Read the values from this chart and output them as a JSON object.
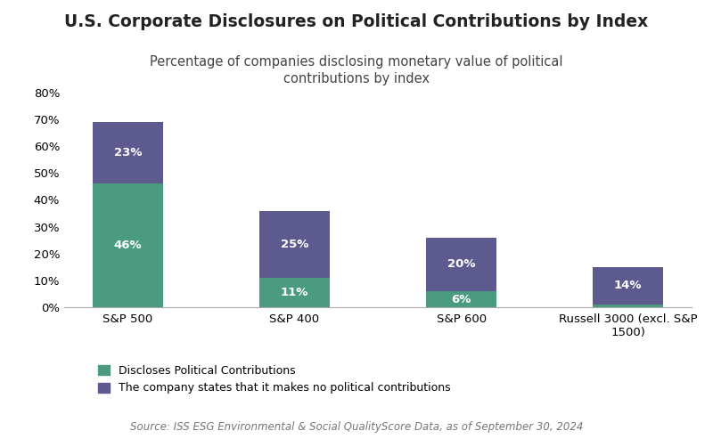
{
  "title": "U.S. Corporate Disclosures on Political Contributions by Index",
  "subtitle": "Percentage of companies disclosing monetary value of political\ncontributions by index",
  "source": "Source: ISS ESG Environmental & Social QualityScore Data, as of September 30, 2024",
  "categories": [
    "S&P 500",
    "S&P 400",
    "S&P 600",
    "Russell 3000 (excl. S&P\n1500)"
  ],
  "green_values": [
    46,
    11,
    6,
    1
  ],
  "purple_values": [
    23,
    25,
    20,
    14
  ],
  "green_color": "#4a9b7f",
  "purple_color": "#5c5a8e",
  "background_color": "#ffffff",
  "ylim": [
    0,
    85
  ],
  "yticks": [
    0,
    10,
    20,
    30,
    40,
    50,
    60,
    70,
    80
  ],
  "legend_green": "Discloses Political Contributions",
  "legend_purple": "The company states that it makes no political contributions",
  "title_fontsize": 13.5,
  "subtitle_fontsize": 10.5,
  "label_fontsize": 9.5,
  "tick_fontsize": 9.5,
  "source_fontsize": 8.5,
  "bar_width": 0.42
}
